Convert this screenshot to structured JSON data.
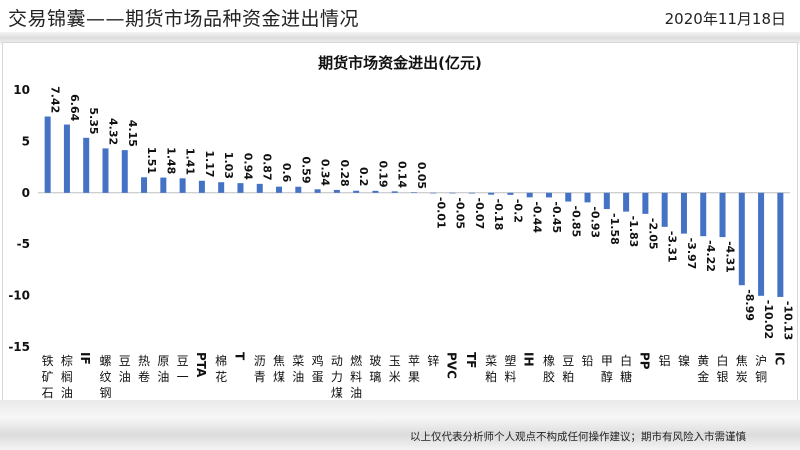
{
  "header": {
    "title": "交易锦囊——期货市场品种资金进出情况",
    "date": "2020年11月18日"
  },
  "footer": {
    "disclaimer": "以上仅代表分析师个人观点不构成任何操作建议；期市有风险入市需谨慎"
  },
  "colors": {
    "bar": "#4472c4",
    "axis": "#bfbfbf"
  },
  "chart_data": {
    "type": "bar",
    "title": "期货市场资金进出(亿元)",
    "xlabel": "",
    "ylabel": "",
    "ylim": [
      -15,
      10
    ],
    "yticks": [
      10,
      5,
      0,
      -5,
      -10,
      -15
    ],
    "grid": false,
    "categories": [
      "铁矿石",
      "棕榈油",
      "IF",
      "螺纹钢",
      "豆油",
      "热卷",
      "原油",
      "豆一",
      "PTA",
      "棉花",
      "T",
      "沥青",
      "焦煤",
      "菜油",
      "鸡蛋",
      "动力煤",
      "燃料油",
      "玻璃",
      "玉米",
      "苹果",
      "锌",
      "PVC",
      "TF",
      "菜粕",
      "塑料",
      "IH",
      "橡胶",
      "豆粕",
      "铅",
      "甲醇",
      "白糖",
      "PP",
      "铝",
      "镍",
      "黄金",
      "白银",
      "焦炭",
      "沪铜",
      "IC"
    ],
    "values": [
      7.42,
      6.64,
      5.35,
      4.32,
      4.15,
      1.51,
      1.48,
      1.41,
      1.17,
      1.03,
      0.94,
      0.87,
      0.6,
      0.59,
      0.34,
      0.28,
      0.2,
      0.19,
      0.14,
      0.05,
      -0.01,
      -0.05,
      -0.07,
      -0.18,
      -0.2,
      -0.44,
      -0.45,
      -0.85,
      -0.93,
      -1.58,
      -1.83,
      -2.05,
      -3.31,
      -3.97,
      -4.22,
      -4.31,
      -8.99,
      -10.02,
      -10.13
    ]
  }
}
